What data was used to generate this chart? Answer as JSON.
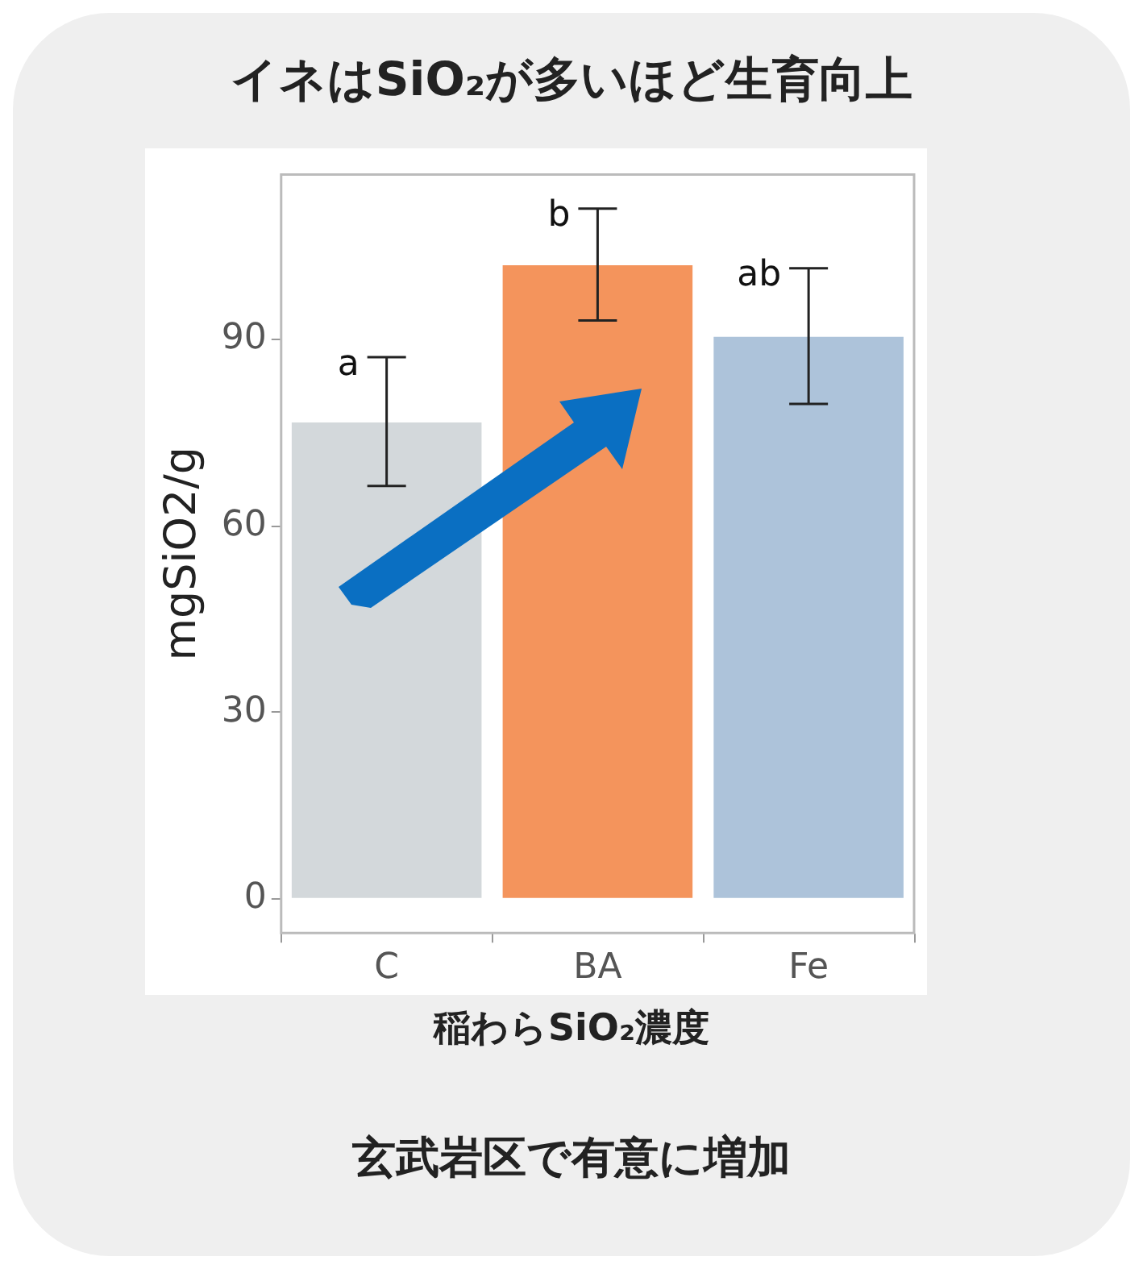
{
  "chart_data": {
    "type": "bar",
    "title": "イネはSiO₂が多いほど生育向上",
    "xlabel": "稲わらSiO₂濃度",
    "ylabel": "mgSiO2/g",
    "categories": [
      "C",
      "BA",
      "Fe"
    ],
    "values": [
      76.6,
      101.9,
      90.4
    ],
    "colors": [
      "#d3d8db",
      "#f4945c",
      "#adc3da"
    ],
    "errors": [
      [
        66.4,
        87.1
      ],
      [
        93.0,
        111.0
      ],
      [
        79.6,
        101.4
      ]
    ],
    "ylim": [
      -5.5,
      116.5
    ],
    "yticks": [
      0,
      30,
      60,
      90
    ],
    "grid": false,
    "legend": false,
    "annotations": [
      "a",
      "b",
      "ab",
      "玄武岩区で有意に増加"
    ]
  }
}
